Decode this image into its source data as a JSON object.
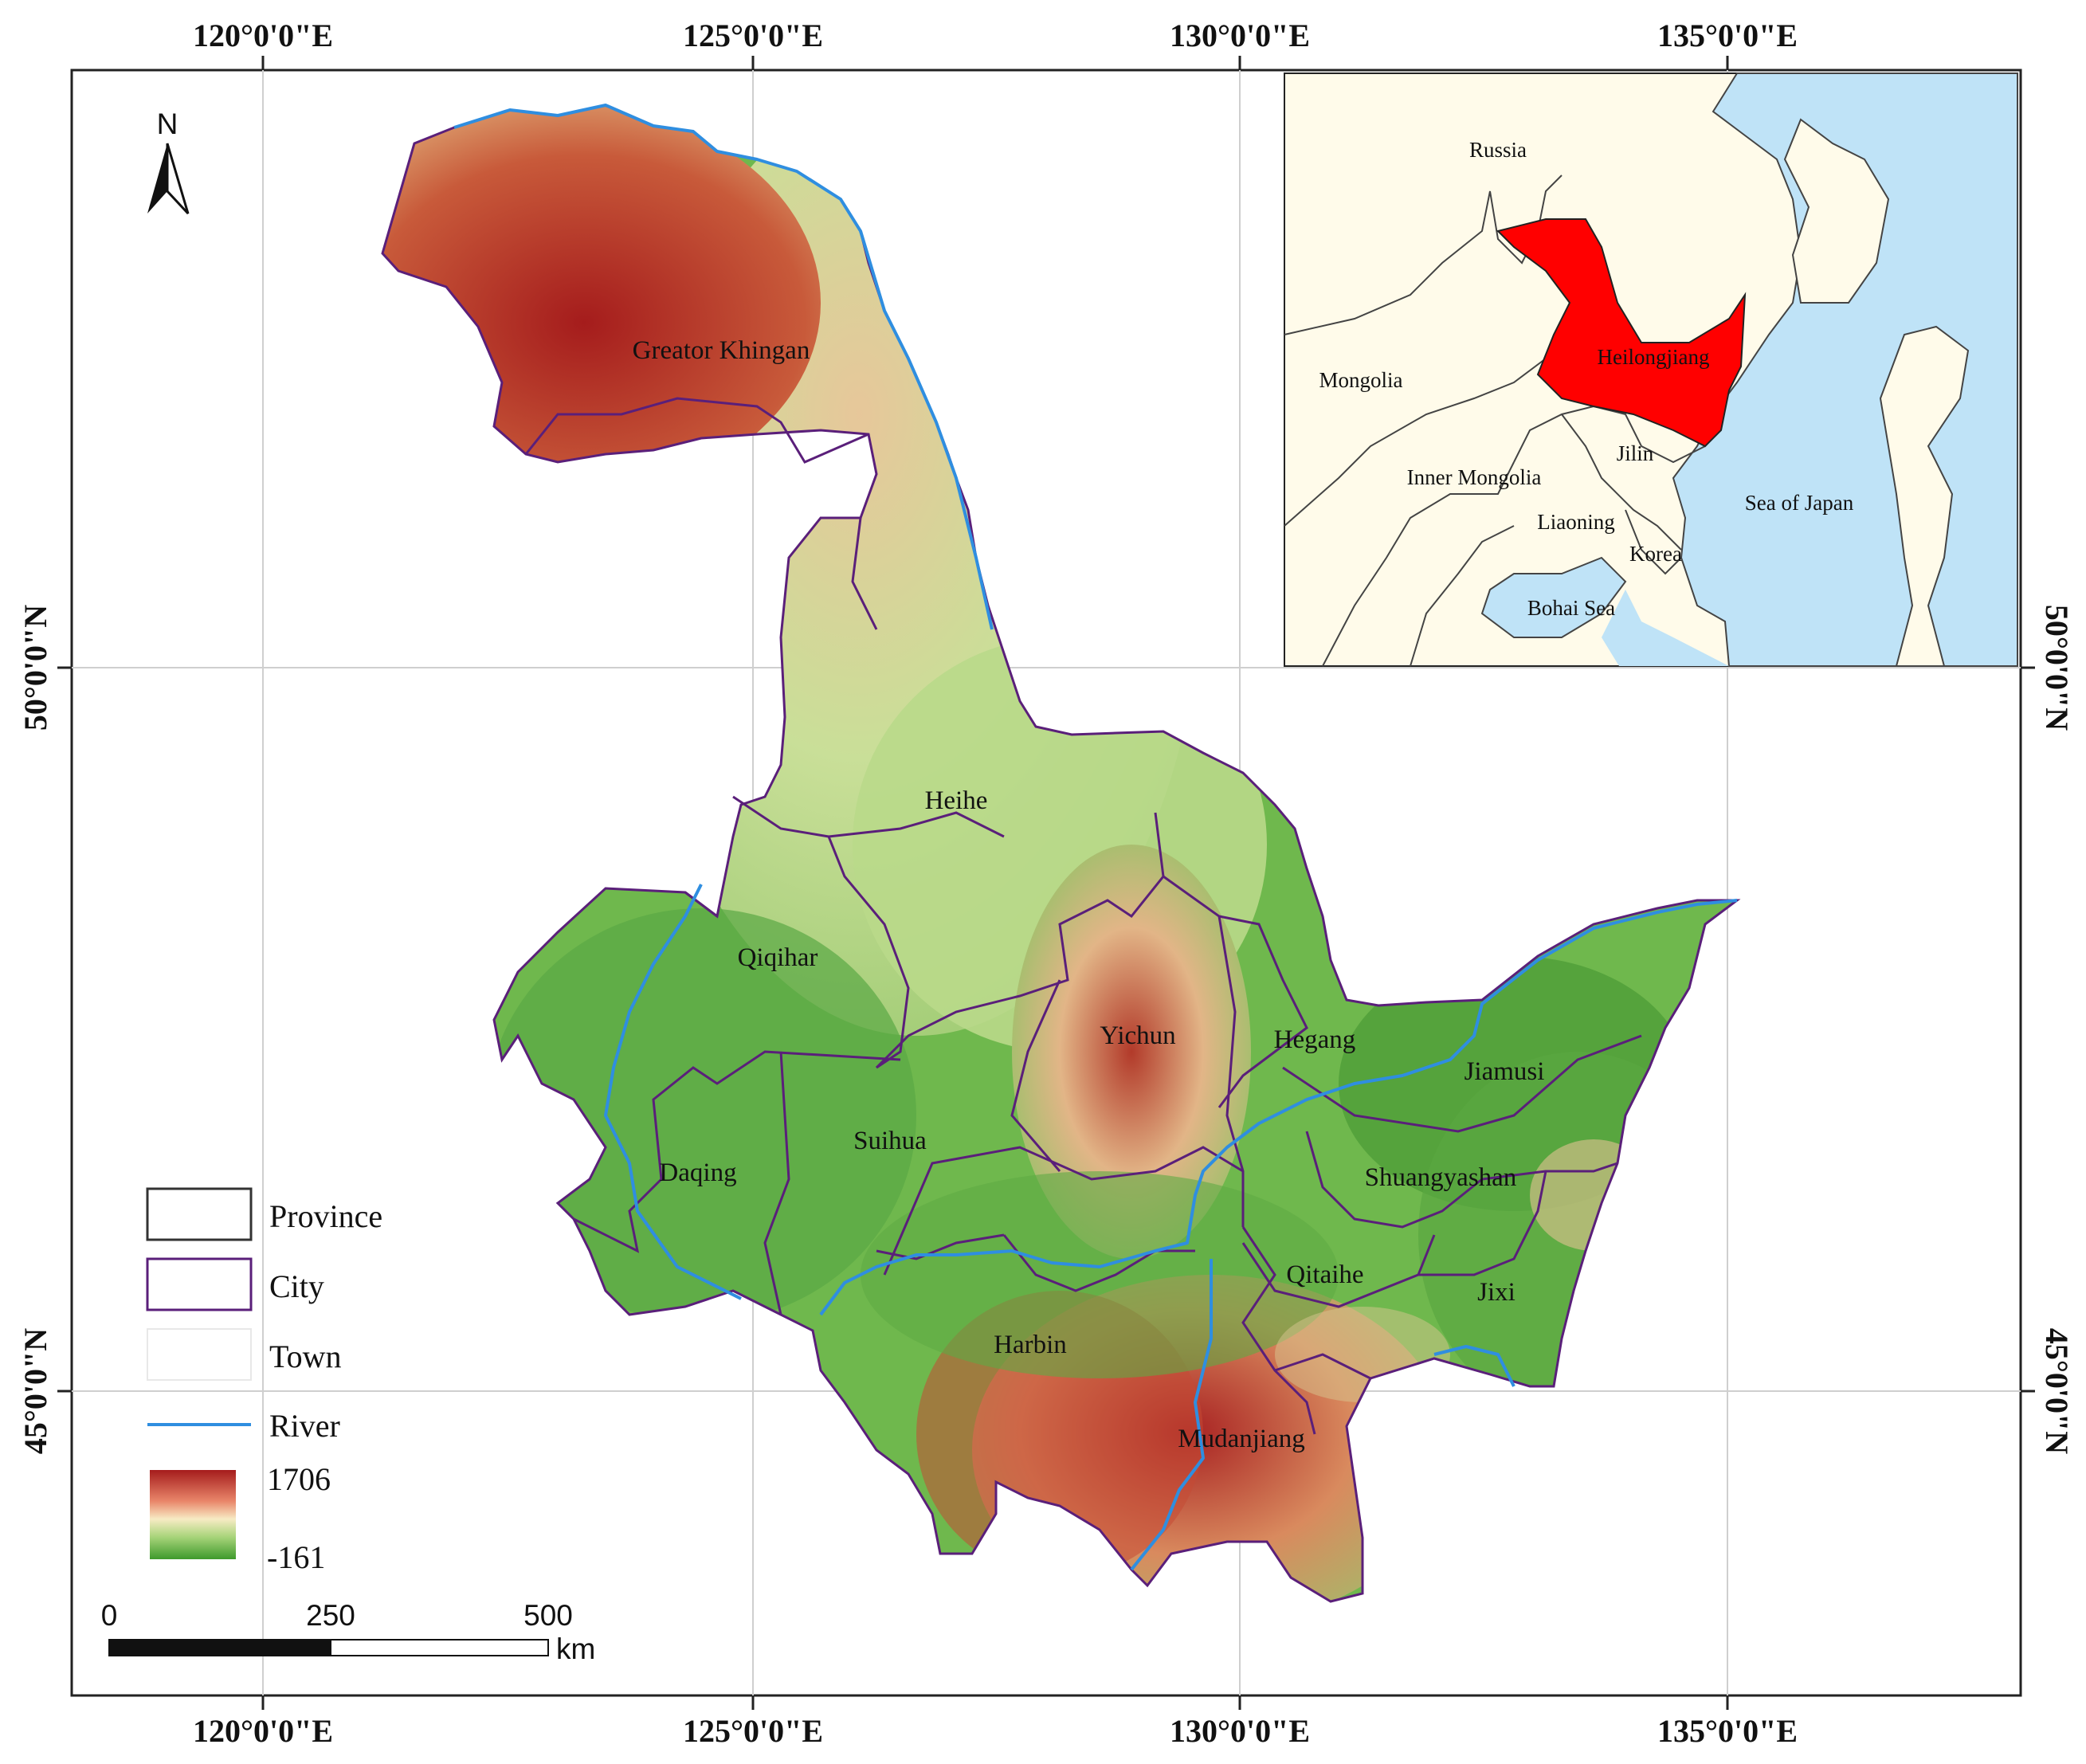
{
  "graticule": {
    "top_lon": [
      "120°0'0\"E",
      "125°0'0\"E",
      "130°0'0\"E",
      "135°0'0\"E"
    ],
    "bottom_lon": [
      "120°0'0\"E",
      "125°0'0\"E",
      "130°0'0\"E",
      "135°0'0\"E"
    ],
    "left_lat": [
      "50°0'0\"N",
      "45°0'0\"N"
    ],
    "right_lat": [
      "50°0'0\"N",
      "45°0'0\"N"
    ]
  },
  "north_arrow": {
    "label": "N"
  },
  "cities": {
    "greater_khingan": "Greator Khingan",
    "heihe": "Heihe",
    "qiqihar": "Qiqihar",
    "yichun": "Yichun",
    "hegang": "Hegang",
    "jiamusi": "Jiamusi",
    "daqing": "Daqing",
    "suihua": "Suihua",
    "shuangyashan": "Shuangyashan",
    "qitaihe": "Qitaihe",
    "jixi": "Jixi",
    "harbin": "Harbin",
    "mudanjiang": "Mudanjiang"
  },
  "inset": {
    "russia": "Russia",
    "mongolia": "Mongolia",
    "heilongjiang": "Heilongjiang",
    "jilin": "Jilin",
    "inner_mongolia": "Inner Mongolia",
    "liaoning": "Liaoning",
    "korea": "Korea",
    "sea_of_japan": "Sea of Japan",
    "bohai_sea": "Bohai Sea"
  },
  "legend": {
    "province": "Province",
    "city": "City",
    "town": "Town",
    "river": "River",
    "elev_max": "1706",
    "elev_min": "-161"
  },
  "scale_bar": {
    "t0": "0",
    "t1": "250",
    "t2": "500",
    "unit": "km"
  },
  "colors": {
    "high_elev": "#a51c1c",
    "mid_elev": "#f3e3a8",
    "low_elev": "#3e9a2c",
    "city_border": "#5a1f7a",
    "river": "#2f8ee0",
    "heilongjiang_inset": "#ff0000",
    "sea": "#bfe3f7",
    "land": "#fffbea"
  }
}
